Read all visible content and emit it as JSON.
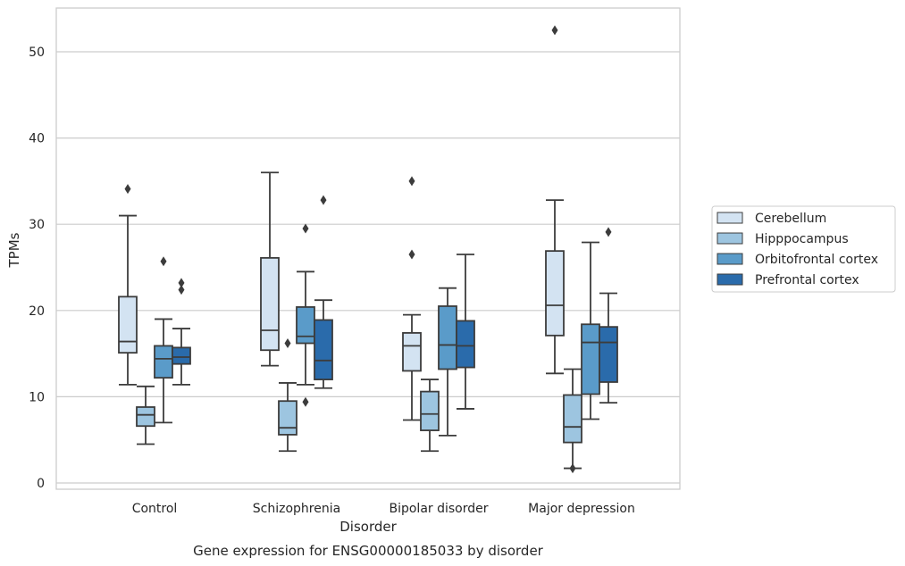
{
  "chart_data": {
    "type": "boxplot",
    "xlabel": "Disorder",
    "ylabel": "TPMs",
    "caption": "Gene expression for ENSG00000185033 by disorder",
    "ylim": [
      -1,
      55
    ],
    "yticks": [
      0,
      10,
      20,
      30,
      40,
      50
    ],
    "grid": true,
    "legend_position": "right",
    "categories": [
      "Control",
      "Schizophrenia",
      "Bipolar disorder",
      "Major depression"
    ],
    "series": [
      {
        "name": "Cerebellum",
        "color": "#d3e3f2",
        "boxes": [
          {
            "whislo": 11.4,
            "q1": 15.1,
            "med": 16.4,
            "q3": 21.6,
            "whishi": 31.0,
            "fliers": [
              34.1
            ]
          },
          {
            "whislo": 13.6,
            "q1": 15.4,
            "med": 17.7,
            "q3": 26.1,
            "whishi": 36.0,
            "fliers": []
          },
          {
            "whislo": 7.3,
            "q1": 13.0,
            "med": 15.9,
            "q3": 17.4,
            "whishi": 19.5,
            "fliers": [
              35.0,
              26.5
            ]
          },
          {
            "whislo": 12.7,
            "q1": 17.1,
            "med": 20.6,
            "q3": 26.9,
            "whishi": 32.8,
            "fliers": [
              52.5
            ]
          }
        ]
      },
      {
        "name": "Hipppocampus",
        "color": "#9dc5e0",
        "boxes": [
          {
            "whislo": 4.5,
            "q1": 6.6,
            "med": 7.9,
            "q3": 8.8,
            "whishi": 11.2,
            "fliers": []
          },
          {
            "whislo": 3.7,
            "q1": 5.6,
            "med": 6.4,
            "q3": 9.5,
            "whishi": 11.6,
            "fliers": [
              16.2
            ]
          },
          {
            "whislo": 3.7,
            "q1": 6.1,
            "med": 8.0,
            "q3": 10.6,
            "whishi": 12.0,
            "fliers": []
          },
          {
            "whislo": 1.7,
            "q1": 4.7,
            "med": 6.5,
            "q3": 10.2,
            "whishi": 13.2,
            "fliers": [
              1.7
            ]
          }
        ]
      },
      {
        "name": "Orbitofrontal cortex",
        "color": "#5a9bc9",
        "boxes": [
          {
            "whislo": 7.0,
            "q1": 12.2,
            "med": 14.4,
            "q3": 15.9,
            "whishi": 19.0,
            "fliers": [
              25.7
            ]
          },
          {
            "whislo": 11.4,
            "q1": 16.2,
            "med": 17.0,
            "q3": 20.4,
            "whishi": 24.5,
            "fliers": [
              29.5,
              9.4
            ]
          },
          {
            "whislo": 5.5,
            "q1": 13.2,
            "med": 16.0,
            "q3": 20.5,
            "whishi": 22.6,
            "fliers": []
          },
          {
            "whislo": 7.4,
            "q1": 10.3,
            "med": 16.3,
            "q3": 18.4,
            "whishi": 27.9,
            "fliers": []
          }
        ]
      },
      {
        "name": "Prefrontal cortex",
        "color": "#2a6bab",
        "boxes": [
          {
            "whislo": 11.4,
            "q1": 13.8,
            "med": 14.6,
            "q3": 15.7,
            "whishi": 17.9,
            "fliers": [
              23.2,
              22.4
            ]
          },
          {
            "whislo": 11.0,
            "q1": 12.0,
            "med": 14.2,
            "q3": 18.9,
            "whishi": 21.2,
            "fliers": [
              32.8
            ]
          },
          {
            "whislo": 8.6,
            "q1": 13.4,
            "med": 15.9,
            "q3": 18.8,
            "whishi": 26.5,
            "fliers": []
          },
          {
            "whislo": 9.3,
            "q1": 11.7,
            "med": 16.3,
            "q3": 18.1,
            "whishi": 22.0,
            "fliers": [
              29.1
            ]
          }
        ]
      }
    ]
  }
}
